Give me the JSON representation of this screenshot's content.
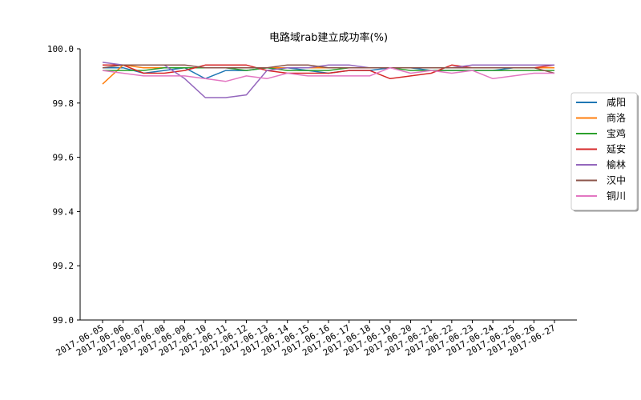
{
  "chart_data": {
    "type": "line",
    "title": "电路域rab建立成功率(%)",
    "xlabel": "",
    "ylabel": "",
    "ylim": [
      99.0,
      100.0
    ],
    "yticks": [
      "99.0",
      "99.2",
      "99.4",
      "99.6",
      "99.8",
      "100.0"
    ],
    "ytick_values": [
      99.0,
      99.2,
      99.4,
      99.6,
      99.8,
      100.0
    ],
    "categories": [
      "2017-06-05",
      "2017-06-06",
      "2017-06-07",
      "2017-06-08",
      "2017-06-09",
      "2017-06-10",
      "2017-06-11",
      "2017-06-12",
      "2017-06-13",
      "2017-06-14",
      "2017-06-15",
      "2017-06-16",
      "2017-06-17",
      "2017-06-18",
      "2017-06-19",
      "2017-06-20",
      "2017-06-21",
      "2017-06-22",
      "2017-06-23",
      "2017-06-24",
      "2017-06-25",
      "2017-06-26",
      "2017-06-27"
    ],
    "grid": false,
    "legend_position": "center-right",
    "series": [
      {
        "name": "咸阳",
        "color": "#1f77b4",
        "values": [
          99.93,
          99.93,
          99.91,
          99.92,
          99.93,
          99.89,
          99.92,
          99.92,
          99.93,
          99.93,
          99.92,
          99.91,
          99.92,
          99.92,
          99.93,
          99.93,
          99.92,
          99.92,
          99.92,
          99.92,
          99.93,
          99.93,
          99.93
        ]
      },
      {
        "name": "商洛",
        "color": "#ff7f0e",
        "values": [
          99.87,
          99.94,
          99.93,
          99.93,
          99.93,
          99.93,
          99.93,
          99.93,
          99.93,
          99.93,
          99.93,
          99.93,
          99.93,
          99.93,
          99.93,
          99.93,
          99.93,
          99.93,
          99.93,
          99.93,
          99.93,
          99.93,
          99.93
        ]
      },
      {
        "name": "宝鸡",
        "color": "#2ca02c",
        "values": [
          99.92,
          99.92,
          99.92,
          99.93,
          99.93,
          99.93,
          99.93,
          99.92,
          99.93,
          99.92,
          99.92,
          99.92,
          99.93,
          99.93,
          99.93,
          99.92,
          99.92,
          99.92,
          99.92,
          99.92,
          99.92,
          99.92,
          99.92
        ]
      },
      {
        "name": "延安",
        "color": "#d62728",
        "values": [
          99.94,
          99.94,
          99.91,
          99.91,
          99.92,
          99.94,
          99.94,
          99.94,
          99.92,
          99.91,
          99.91,
          99.91,
          99.92,
          99.92,
          99.89,
          99.9,
          99.91,
          99.94,
          99.93,
          99.93,
          99.93,
          99.93,
          99.94
        ]
      },
      {
        "name": "榆林",
        "color": "#9467bd",
        "values": [
          99.95,
          99.94,
          99.94,
          99.94,
          99.89,
          99.82,
          99.82,
          99.83,
          99.92,
          99.93,
          99.93,
          99.94,
          99.94,
          99.93,
          99.93,
          99.93,
          99.93,
          99.93,
          99.94,
          99.94,
          99.94,
          99.94,
          99.94
        ]
      },
      {
        "name": "汉中",
        "color": "#8c564b",
        "values": [
          99.93,
          99.94,
          99.94,
          99.94,
          99.94,
          99.93,
          99.93,
          99.93,
          99.93,
          99.94,
          99.94,
          99.93,
          99.93,
          99.93,
          99.93,
          99.93,
          99.93,
          99.93,
          99.93,
          99.93,
          99.93,
          99.93,
          99.91
        ]
      },
      {
        "name": "铜川",
        "color": "#e377c2",
        "values": [
          99.92,
          99.91,
          99.9,
          99.9,
          99.9,
          99.89,
          99.88,
          99.9,
          99.89,
          99.91,
          99.9,
          99.9,
          99.9,
          99.9,
          99.93,
          99.91,
          99.92,
          99.91,
          99.92,
          99.89,
          99.9,
          99.91,
          99.91
        ]
      }
    ]
  }
}
